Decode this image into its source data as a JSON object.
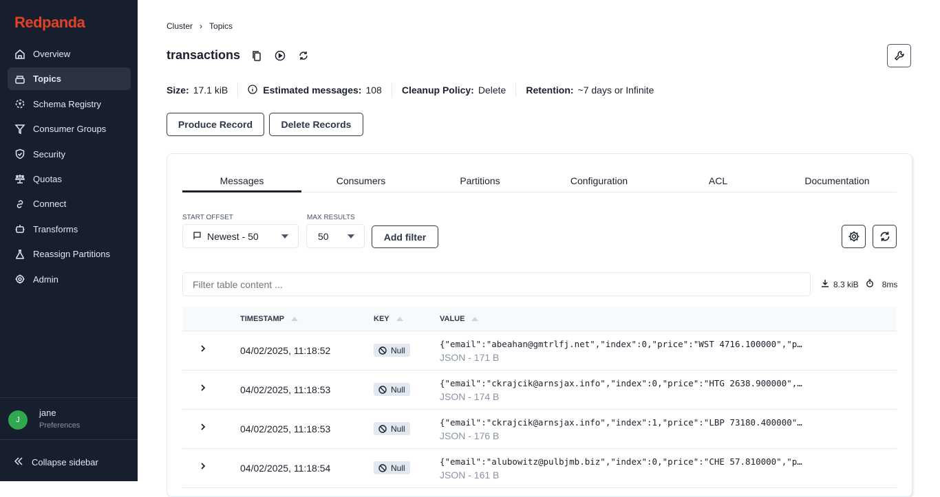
{
  "sidebar": {
    "logo": "Redpanda",
    "items": [
      {
        "label": "Overview",
        "icon": "home-icon"
      },
      {
        "label": "Topics",
        "icon": "topics-icon",
        "active": true
      },
      {
        "label": "Schema Registry",
        "icon": "schema-icon"
      },
      {
        "label": "Consumer Groups",
        "icon": "filter-icon"
      },
      {
        "label": "Security",
        "icon": "shield-icon"
      },
      {
        "label": "Quotas",
        "icon": "scale-icon"
      },
      {
        "label": "Connect",
        "icon": "link-icon"
      },
      {
        "label": "Transforms",
        "icon": "robot-icon"
      },
      {
        "label": "Reassign Partitions",
        "icon": "flask-icon"
      },
      {
        "label": "Admin",
        "icon": "gear-icon"
      }
    ],
    "user": {
      "initial": "J",
      "name": "jane",
      "sub": "Preferences"
    },
    "collapse": "Collapse sidebar"
  },
  "breadcrumb": [
    "Cluster",
    "Topics"
  ],
  "topic": {
    "title": "transactions",
    "stats": {
      "size_label": "Size:",
      "size": "17.1 kiB",
      "msgs_label": "Estimated messages:",
      "msgs": "108",
      "cleanup_label": "Cleanup Policy:",
      "cleanup": "Delete",
      "retention_label": "Retention:",
      "retention": "~7 days or Infinite"
    },
    "produce": "Produce Record",
    "delete": "Delete Records"
  },
  "tabs": [
    "Messages",
    "Consumers",
    "Partitions",
    "Configuration",
    "ACL",
    "Documentation"
  ],
  "controls": {
    "start_offset_label": "START OFFSET",
    "start_offset": "Newest - 50",
    "max_results_label": "MAX RESULTS",
    "max_results": "50",
    "add_filter": "Add filter",
    "filter_placeholder": "Filter table content ...",
    "download_size": "8.3 kiB",
    "duration": "8ms"
  },
  "table": {
    "columns": [
      "TIMESTAMP",
      "KEY",
      "VALUE"
    ],
    "rows": [
      {
        "timestamp": "04/02/2025, 11:18:52",
        "key": "Null",
        "value": "{\"email\":\"abeahan@gmtrlfj.net\",\"index\":0,\"price\":\"WST 4716.100000\",\"p…",
        "meta": "JSON - 171 B"
      },
      {
        "timestamp": "04/02/2025, 11:18:53",
        "key": "Null",
        "value": "{\"email\":\"ckrajcik@arnsjax.info\",\"index\":0,\"price\":\"HTG 2638.900000\",…",
        "meta": "JSON - 174 B"
      },
      {
        "timestamp": "04/02/2025, 11:18:53",
        "key": "Null",
        "value": "{\"email\":\"ckrajcik@arnsjax.info\",\"index\":1,\"price\":\"LBP 73180.400000\"…",
        "meta": "JSON - 176 B"
      },
      {
        "timestamp": "04/02/2025, 11:18:54",
        "key": "Null",
        "value": "{\"email\":\"alubowitz@pulbjmb.biz\",\"index\":0,\"price\":\"CHE 57.810000\",\"p…",
        "meta": "JSON - 161 B"
      }
    ]
  },
  "colors": {
    "sidebar": "#171e2e",
    "brand": "#e14226",
    "avatar": "#2fa84f"
  }
}
